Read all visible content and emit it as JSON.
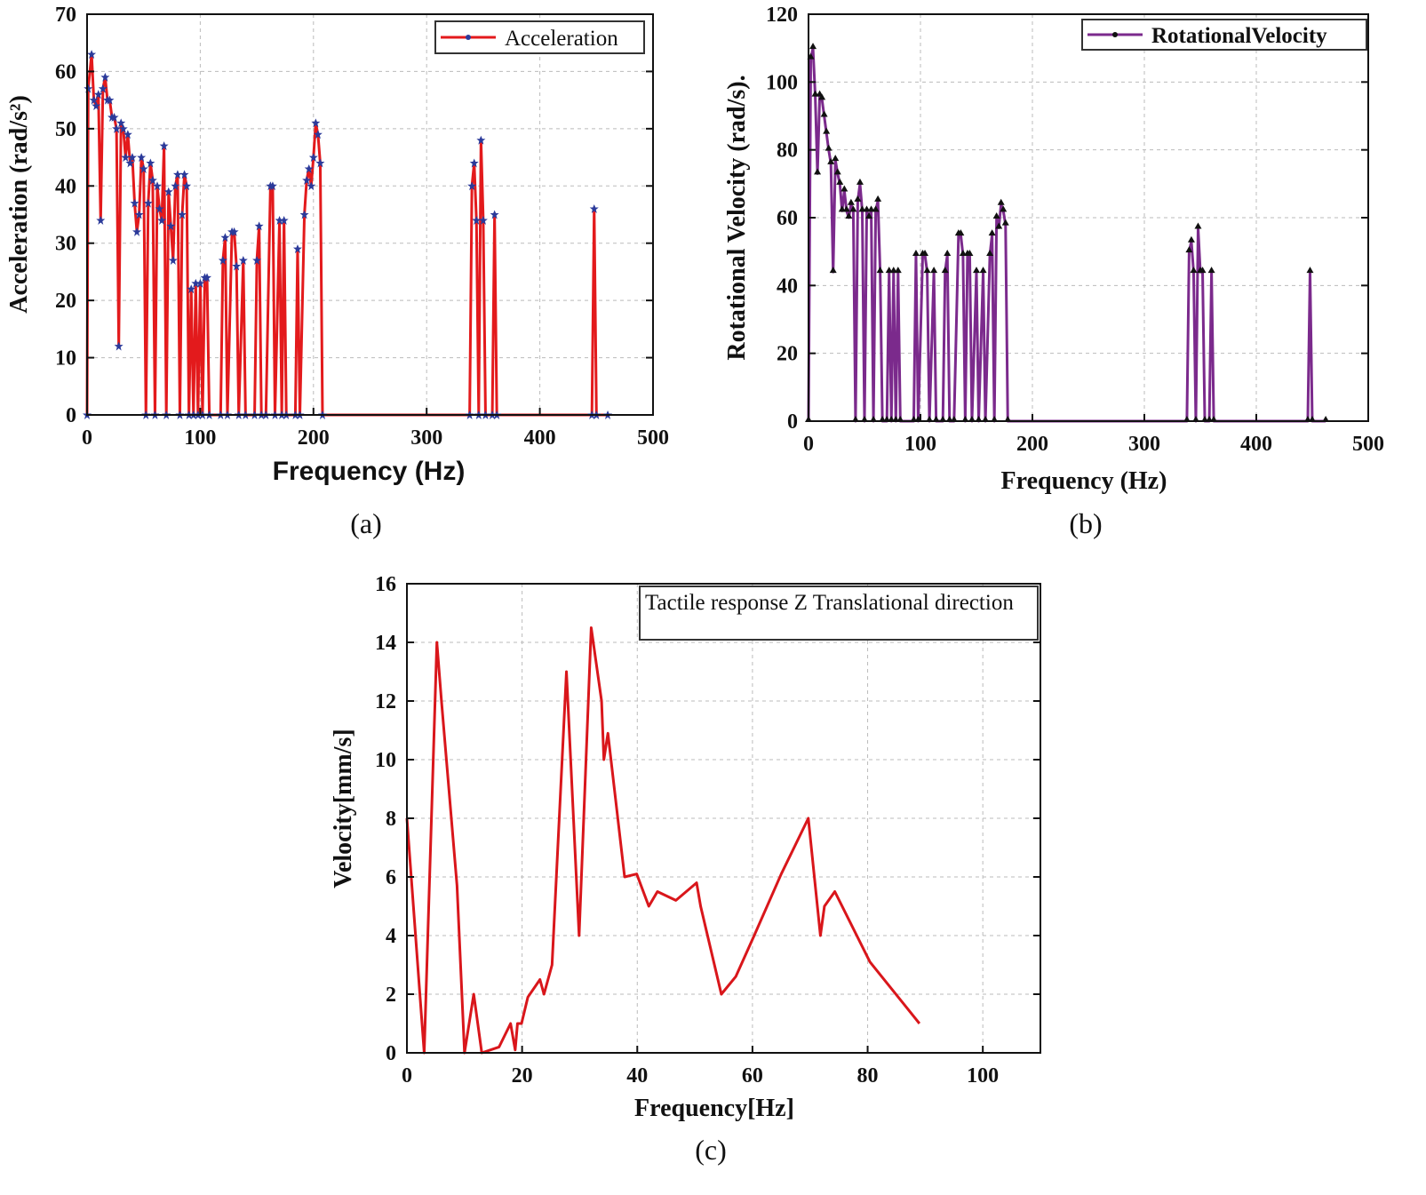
{
  "chart_data": [
    {
      "type": "line",
      "caption": "(a)",
      "xlabel": "Frequency (Hz)",
      "ylabel": "Acceleration (rad/s²)",
      "xlim": [
        0,
        500
      ],
      "ylim": [
        0,
        70
      ],
      "xticks": [
        0,
        100,
        200,
        300,
        400,
        500
      ],
      "yticks": [
        0,
        10,
        20,
        30,
        40,
        50,
        60,
        70
      ],
      "grid": true,
      "legend_position": "top-right",
      "series": [
        {
          "name": "Acceleration",
          "color": "#e31a1c",
          "marker": "star",
          "marker_color": "#2b3a9a",
          "points": [
            [
              0,
              0
            ],
            [
              1,
              57
            ],
            [
              4,
              63
            ],
            [
              6,
              55
            ],
            [
              8,
              54
            ],
            [
              10,
              56
            ],
            [
              12,
              34
            ],
            [
              14,
              57
            ],
            [
              16,
              59
            ],
            [
              18,
              55
            ],
            [
              20,
              55
            ],
            [
              22,
              52
            ],
            [
              24,
              52
            ],
            [
              26,
              50
            ],
            [
              28,
              12
            ],
            [
              30,
              51
            ],
            [
              32,
              50
            ],
            [
              34,
              45
            ],
            [
              36,
              49
            ],
            [
              38,
              44
            ],
            [
              40,
              45
            ],
            [
              42,
              37
            ],
            [
              44,
              32
            ],
            [
              46,
              35
            ],
            [
              48,
              45
            ],
            [
              50,
              43
            ],
            [
              52,
              0
            ],
            [
              54,
              37
            ],
            [
              56,
              44
            ],
            [
              58,
              41
            ],
            [
              60,
              0
            ],
            [
              62,
              40
            ],
            [
              64,
              36
            ],
            [
              66,
              34
            ],
            [
              68,
              47
            ],
            [
              70,
              0
            ],
            [
              72,
              39
            ],
            [
              74,
              33
            ],
            [
              76,
              27
            ],
            [
              78,
              40
            ],
            [
              80,
              42
            ],
            [
              82,
              0
            ],
            [
              84,
              35
            ],
            [
              86,
              42
            ],
            [
              88,
              40
            ],
            [
              90,
              0
            ],
            [
              92,
              22
            ],
            [
              94,
              0
            ],
            [
              96,
              23
            ],
            [
              98,
              0
            ],
            [
              100,
              23
            ],
            [
              102,
              0
            ],
            [
              104,
              24
            ],
            [
              106,
              24
            ],
            [
              108,
              0
            ],
            [
              118,
              0
            ],
            [
              120,
              27
            ],
            [
              122,
              31
            ],
            [
              124,
              0
            ],
            [
              128,
              32
            ],
            [
              130,
              32
            ],
            [
              132,
              26
            ],
            [
              134,
              0
            ],
            [
              138,
              27
            ],
            [
              140,
              0
            ],
            [
              148,
              0
            ],
            [
              150,
              27
            ],
            [
              152,
              33
            ],
            [
              154,
              0
            ],
            [
              158,
              0
            ],
            [
              162,
              40
            ],
            [
              164,
              40
            ],
            [
              166,
              0
            ],
            [
              170,
              34
            ],
            [
              172,
              0
            ],
            [
              174,
              34
            ],
            [
              176,
              0
            ],
            [
              184,
              0
            ],
            [
              186,
              29
            ],
            [
              188,
              0
            ],
            [
              192,
              35
            ],
            [
              194,
              41
            ],
            [
              196,
              43
            ],
            [
              198,
              40
            ],
            [
              200,
              45
            ],
            [
              202,
              51
            ],
            [
              204,
              49
            ],
            [
              206,
              44
            ],
            [
              208,
              0
            ],
            [
              338,
              0
            ],
            [
              340,
              40
            ],
            [
              342,
              44
            ],
            [
              344,
              34
            ],
            [
              346,
              0
            ],
            [
              348,
              48
            ],
            [
              350,
              34
            ],
            [
              352,
              0
            ],
            [
              358,
              0
            ],
            [
              360,
              35
            ],
            [
              362,
              0
            ],
            [
              446,
              0
            ],
            [
              448,
              36
            ],
            [
              450,
              0
            ],
            [
              460,
              0
            ]
          ]
        }
      ]
    },
    {
      "type": "line",
      "caption": "(b)",
      "xlabel": "Frequency (Hz)",
      "ylabel": "Rotational Velocity (rad/s).",
      "xlim": [
        0,
        500
      ],
      "ylim": [
        0,
        120
      ],
      "xticks": [
        0,
        100,
        200,
        300,
        400,
        500
      ],
      "yticks": [
        0,
        20,
        40,
        60,
        80,
        100,
        120
      ],
      "grid": true,
      "legend_position": "top-right",
      "series": [
        {
          "name": "RotationalVelocity",
          "color": "#7b2a8c",
          "marker": "triangle",
          "marker_color": "#111111",
          "points": [
            [
              0,
              0
            ],
            [
              2,
              107
            ],
            [
              4,
              110
            ],
            [
              6,
              96
            ],
            [
              8,
              73
            ],
            [
              10,
              96
            ],
            [
              12,
              95
            ],
            [
              14,
              90
            ],
            [
              16,
              85
            ],
            [
              18,
              80
            ],
            [
              20,
              76
            ],
            [
              22,
              44
            ],
            [
              24,
              77
            ],
            [
              26,
              73
            ],
            [
              28,
              70
            ],
            [
              30,
              62
            ],
            [
              32,
              68
            ],
            [
              34,
              62
            ],
            [
              36,
              60
            ],
            [
              38,
              64
            ],
            [
              40,
              62
            ],
            [
              42,
              0
            ],
            [
              44,
              65
            ],
            [
              46,
              70
            ],
            [
              48,
              62
            ],
            [
              50,
              0
            ],
            [
              52,
              62
            ],
            [
              54,
              60
            ],
            [
              56,
              62
            ],
            [
              58,
              0
            ],
            [
              60,
              62
            ],
            [
              62,
              65
            ],
            [
              64,
              44
            ],
            [
              66,
              0
            ],
            [
              70,
              0
            ],
            [
              72,
              44
            ],
            [
              74,
              0
            ],
            [
              76,
              44
            ],
            [
              78,
              0
            ],
            [
              80,
              44
            ],
            [
              82,
              0
            ],
            [
              94,
              0
            ],
            [
              96,
              49
            ],
            [
              98,
              0
            ],
            [
              102,
              49
            ],
            [
              104,
              49
            ],
            [
              106,
              44
            ],
            [
              108,
              0
            ],
            [
              112,
              44
            ],
            [
              114,
              0
            ],
            [
              120,
              0
            ],
            [
              122,
              44
            ],
            [
              124,
              49
            ],
            [
              126,
              0
            ],
            [
              130,
              0
            ],
            [
              134,
              55
            ],
            [
              136,
              55
            ],
            [
              138,
              49
            ],
            [
              140,
              0
            ],
            [
              142,
              49
            ],
            [
              144,
              49
            ],
            [
              146,
              0
            ],
            [
              150,
              44
            ],
            [
              152,
              0
            ],
            [
              156,
              44
            ],
            [
              158,
              0
            ],
            [
              162,
              49
            ],
            [
              164,
              55
            ],
            [
              166,
              0
            ],
            [
              168,
              60
            ],
            [
              170,
              57
            ],
            [
              172,
              64
            ],
            [
              174,
              62
            ],
            [
              176,
              58
            ],
            [
              178,
              0
            ],
            [
              338,
              0
            ],
            [
              340,
              50
            ],
            [
              342,
              53
            ],
            [
              344,
              44
            ],
            [
              346,
              0
            ],
            [
              348,
              57
            ],
            [
              350,
              44
            ],
            [
              352,
              44
            ],
            [
              354,
              0
            ],
            [
              358,
              0
            ],
            [
              360,
              44
            ],
            [
              362,
              0
            ],
            [
              446,
              0
            ],
            [
              448,
              44
            ],
            [
              450,
              0
            ],
            [
              462,
              0
            ]
          ]
        }
      ]
    },
    {
      "type": "line",
      "caption": "(c)",
      "xlabel": "Frequency[Hz]",
      "ylabel": "Velocity[mm/s]",
      "xlim": [
        0,
        110
      ],
      "ylim": [
        0,
        16
      ],
      "xticks": [
        0,
        20,
        40,
        60,
        80,
        100
      ],
      "yticks": [
        0,
        2,
        4,
        6,
        8,
        10,
        12,
        14,
        16
      ],
      "grid": true,
      "legend_position": "top-right",
      "series": [
        {
          "name": "Tactile response Z Translational direction",
          "color": "#d9161b",
          "marker": "none",
          "points": [
            [
              0,
              8
            ],
            [
              3,
              0
            ],
            [
              5.2,
              14
            ],
            [
              6,
              12
            ],
            [
              8.7,
              5.7
            ],
            [
              10,
              0
            ],
            [
              11.6,
              2
            ],
            [
              13,
              0
            ],
            [
              16,
              0.2
            ],
            [
              18,
              1
            ],
            [
              18.8,
              0.1
            ],
            [
              19.2,
              1
            ],
            [
              19.9,
              1
            ],
            [
              21,
              1.9
            ],
            [
              23.1,
              2.5
            ],
            [
              23.8,
              2
            ],
            [
              25.2,
              3
            ],
            [
              27.7,
              13
            ],
            [
              29.9,
              4
            ],
            [
              32,
              14.5
            ],
            [
              33.8,
              12
            ],
            [
              34.2,
              10
            ],
            [
              34.9,
              10.9
            ],
            [
              37.8,
              6
            ],
            [
              39.9,
              6.1
            ],
            [
              42,
              5
            ],
            [
              43.5,
              5.5
            ],
            [
              46.7,
              5.2
            ],
            [
              50.3,
              5.8
            ],
            [
              51,
              5
            ],
            [
              54.6,
              2
            ],
            [
              57.1,
              2.6
            ],
            [
              60.3,
              4
            ],
            [
              65,
              6.1
            ],
            [
              69.7,
              8
            ],
            [
              71.8,
              4
            ],
            [
              72.5,
              5
            ],
            [
              74.3,
              5.5
            ],
            [
              80.4,
              3.1
            ],
            [
              89,
              1
            ]
          ]
        }
      ]
    }
  ]
}
